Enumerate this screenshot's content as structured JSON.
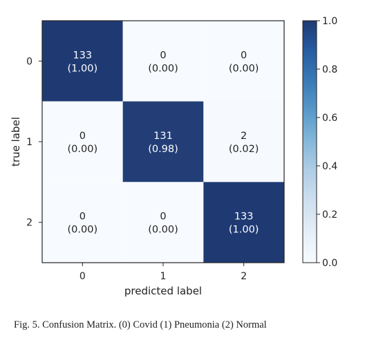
{
  "chart_data": {
    "type": "heatmap",
    "xlabel": "predicted label",
    "ylabel": "true label",
    "x_ticks": [
      "0",
      "1",
      "2"
    ],
    "y_ticks": [
      "0",
      "1",
      "2"
    ],
    "matrix": [
      [
        133,
        0,
        0
      ],
      [
        0,
        131,
        2
      ],
      [
        0,
        0,
        133
      ]
    ],
    "normalized": [
      [
        "1.00",
        "0.00",
        "0.00"
      ],
      [
        "0.00",
        "0.98",
        "0.02"
      ],
      [
        "0.00",
        "0.00",
        "1.00"
      ]
    ],
    "normalized_values": [
      [
        1.0,
        0.0,
        0.0
      ],
      [
        0.0,
        0.98,
        0.02
      ],
      [
        0.0,
        0.0,
        1.0
      ]
    ],
    "colorbar": {
      "range": [
        0.0,
        1.0
      ],
      "ticks": [
        "0.0",
        "0.2",
        "0.4",
        "0.6",
        "0.8",
        "1.0"
      ],
      "colormap": "Blues",
      "color_low": "#f7fbff",
      "color_high": "#1f3a73"
    }
  },
  "caption": "Fig. 5.  Confusion Matrix. (0) Covid (1) Pneumonia (2) Normal"
}
